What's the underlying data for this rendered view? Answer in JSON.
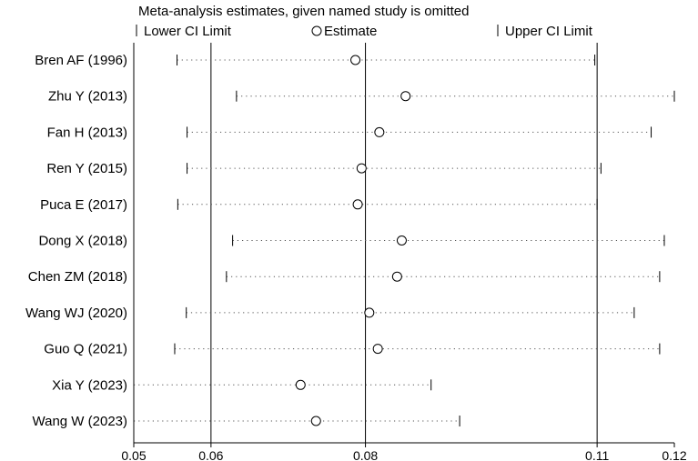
{
  "chart_data": {
    "type": "scatter",
    "title": "Meta-analysis estimates, given named study is omitted",
    "legend": {
      "placement": "top",
      "items": [
        {
          "symbol": "bar",
          "label": "Lower CI Limit"
        },
        {
          "symbol": "circle",
          "label": "Estimate"
        },
        {
          "symbol": "bar",
          "label": "Upper CI Limit"
        }
      ]
    },
    "xlim": [
      0.05,
      0.12
    ],
    "x_ticks": [
      0.05,
      0.06,
      0.08,
      0.11,
      0.12
    ],
    "x_tick_labels": [
      "0.05",
      "0.06",
      "0.08",
      "0.11",
      "0.12"
    ],
    "reference_lines": [
      0.06,
      0.08,
      0.11
    ],
    "studies": [
      {
        "name": "Bren AF (1996)",
        "lower": 0.0556,
        "estimate": 0.0787,
        "upper": 0.1097
      },
      {
        "name": "Zhu Y (2013)",
        "lower": 0.0633,
        "estimate": 0.0852,
        "upper": 0.12
      },
      {
        "name": "Fan H (2013)",
        "lower": 0.0569,
        "estimate": 0.0818,
        "upper": 0.117
      },
      {
        "name": "Ren Y (2015)",
        "lower": 0.0569,
        "estimate": 0.0795,
        "upper": 0.1105
      },
      {
        "name": "Puca E (2017)",
        "lower": 0.0557,
        "estimate": 0.079,
        "upper": 0.11
      },
      {
        "name": "Dong X (2018)",
        "lower": 0.0628,
        "estimate": 0.0847,
        "upper": 0.1187
      },
      {
        "name": "Chen ZM (2018)",
        "lower": 0.062,
        "estimate": 0.0841,
        "upper": 0.1181
      },
      {
        "name": "Wang WJ (2020)",
        "lower": 0.0568,
        "estimate": 0.0805,
        "upper": 0.1148
      },
      {
        "name": "Guo Q (2021)",
        "lower": 0.0553,
        "estimate": 0.0816,
        "upper": 0.1181
      },
      {
        "name": "Xia Y (2023)",
        "lower": 0.05,
        "estimate": 0.0716,
        "upper": 0.0885
      },
      {
        "name": "Wang W (2023)",
        "lower": 0.05,
        "estimate": 0.0736,
        "upper": 0.0922
      }
    ]
  }
}
